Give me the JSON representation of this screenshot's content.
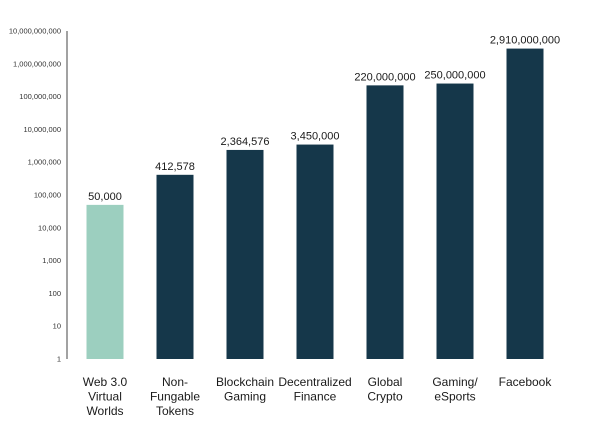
{
  "colors": {
    "bar_dark": "#15374a",
    "bar_highlight": "#9ccfbf",
    "axis": "#444444"
  },
  "chart_data": {
    "type": "bar",
    "y_scale": "log",
    "ylim": [
      1,
      10000000000
    ],
    "grid": false,
    "y_ticks": [
      {
        "value": 1,
        "label": "1"
      },
      {
        "value": 10,
        "label": "10"
      },
      {
        "value": 100,
        "label": "100"
      },
      {
        "value": 1000,
        "label": "1,000"
      },
      {
        "value": 10000,
        "label": "10,000"
      },
      {
        "value": 100000,
        "label": "100,000"
      },
      {
        "value": 1000000,
        "label": "1,000,000"
      },
      {
        "value": 10000000,
        "label": "10,000,000"
      },
      {
        "value": 100000000,
        "label": "100,000,000"
      },
      {
        "value": 1000000000,
        "label": "1,000,000,000"
      },
      {
        "value": 10000000000,
        "label": "10,000,000,000"
      }
    ],
    "categories": [
      [
        "Web 3.0",
        "Virtual",
        "Worlds"
      ],
      [
        "Non-",
        "Fungable",
        "Tokens"
      ],
      [
        "Blockchain",
        "Gaming"
      ],
      [
        "Decentralized",
        "Finance"
      ],
      [
        "Global",
        "Crypto"
      ],
      [
        "Gaming/",
        "eSports"
      ],
      [
        "Facebook"
      ]
    ],
    "values": [
      50000,
      412578,
      2364576,
      3450000,
      220000000,
      250000000,
      2910000000
    ],
    "value_labels": [
      "50,000",
      "412,578",
      "2,364,576",
      "3,450,000",
      "220,000,000",
      "250,000,000",
      "2,910,000,000"
    ],
    "highlight_index": 0
  }
}
